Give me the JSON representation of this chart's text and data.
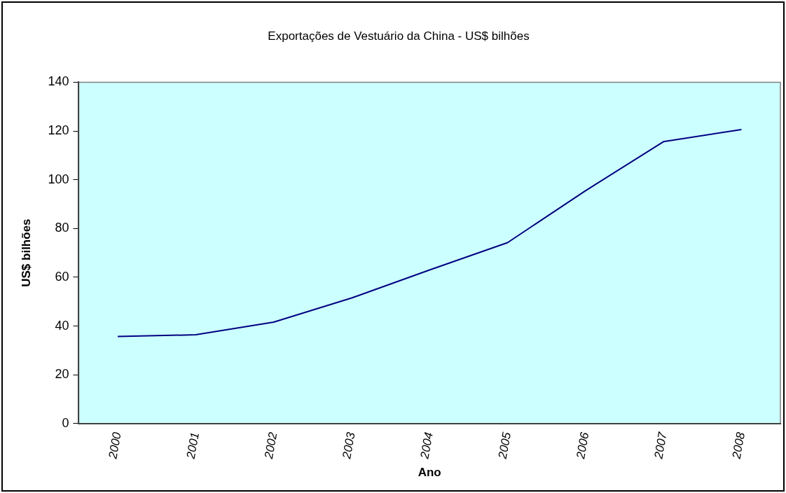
{
  "chart_data": {
    "type": "line",
    "title": "Exportações de Vestuário da China - US$ bilhões",
    "xlabel": "Ano",
    "ylabel": "US$ bilhões",
    "categories": [
      "2000",
      "2001",
      "2002",
      "2003",
      "2004",
      "2005",
      "2006",
      "2007",
      "2008"
    ],
    "series": [
      {
        "color": "#000080",
        "values": [
          35.7,
          36.4,
          41.6,
          51.5,
          63.0,
          74.2,
          95.5,
          115.6,
          120.6
        ]
      }
    ],
    "ylim": [
      0,
      140
    ],
    "yticks": [
      0,
      20,
      40,
      60,
      80,
      100,
      120,
      140
    ],
    "grid": false,
    "legend": false,
    "marker": "none",
    "line_style": "solid"
  }
}
